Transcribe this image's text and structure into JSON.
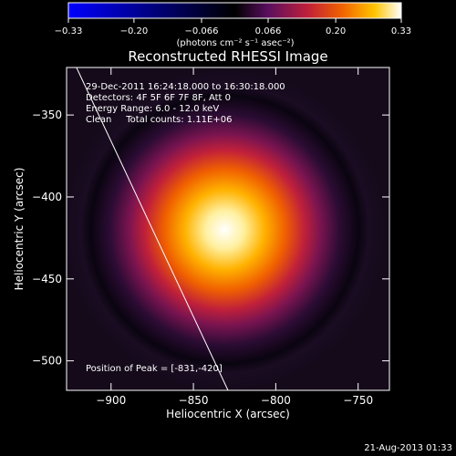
{
  "chart_data": {
    "type": "heatmap",
    "title": "Reconstructed RHESSI Image",
    "xlabel": "Heliocentric X (arcsec)",
    "ylabel": "Heliocentric Y (arcsec)",
    "xlim": [
      -927,
      -731
    ],
    "ylim": [
      -518,
      -321
    ],
    "xticks": [
      -900,
      -850,
      -800,
      -750
    ],
    "yticks": [
      -350,
      -400,
      -450,
      -500
    ],
    "xtick_labels": [
      "−900",
      "−850",
      "−800",
      "−750"
    ],
    "ytick_labels": [
      "−350",
      "−400",
      "−450",
      "−500"
    ],
    "colorbar": {
      "ticks": [
        -0.33,
        -0.2,
        -0.066,
        0.066,
        0.2,
        0.33
      ],
      "tick_labels": [
        "−0.33",
        "−0.20",
        "−0.066",
        "0.066",
        "0.20",
        "0.33"
      ],
      "label": "(photons cm⁻² s⁻¹ asec⁻²)",
      "colors": [
        "#0000ff",
        "#000000",
        "#5a0f5f",
        "#c0203a",
        "#f06000",
        "#ffc400",
        "#ffffff"
      ]
    },
    "source": {
      "x": -831,
      "y": -420,
      "peak": 0.33
    },
    "limb_line": [
      [
        -921,
        -321
      ],
      [
        -829,
        -518
      ]
    ],
    "annotations": [
      "29-Dec-2011 16:24:18.000 to 16:30:18.000",
      "Detectors: 4F 5F 6F 7F 8F, Att 0",
      "Energy Range: 6.0 - 12.0 keV",
      "Clean     Total counts: 1.11E+06"
    ],
    "peak_label": "Position of Peak = [-831,-420]",
    "timestamp": "21-Aug-2013 01:33"
  }
}
